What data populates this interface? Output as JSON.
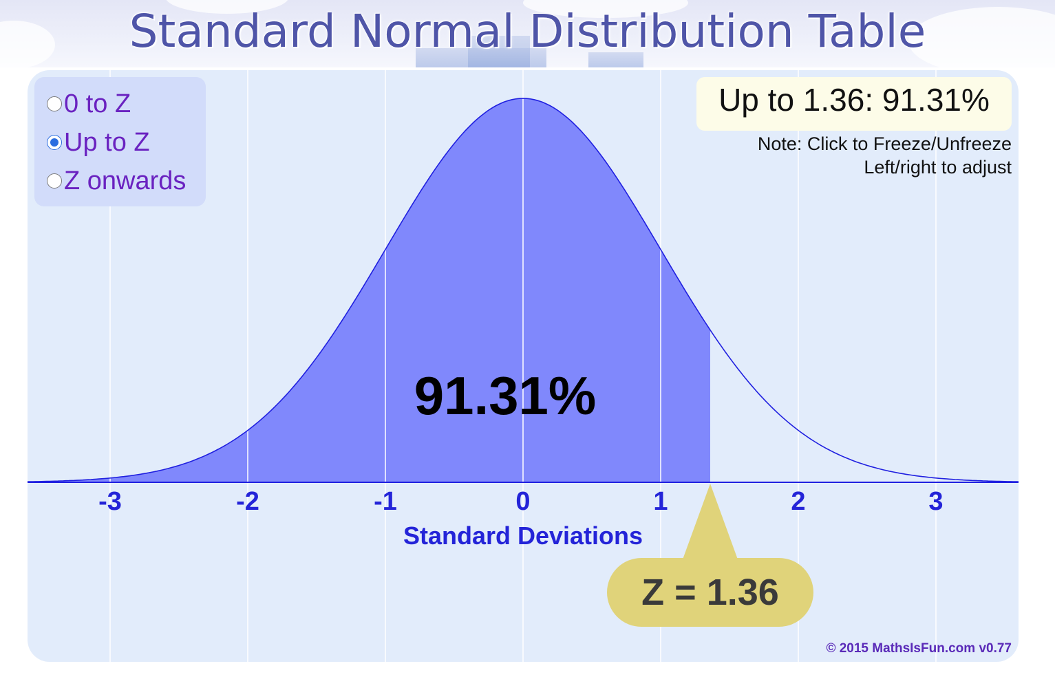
{
  "page": {
    "title": "Standard Normal Distribution Table"
  },
  "modes": [
    {
      "label": "0 to Z",
      "selected": false
    },
    {
      "label": "Up to Z",
      "selected": true
    },
    {
      "label": "Z onwards",
      "selected": false
    }
  ],
  "result": {
    "text": "Up to 1.36: 91.31%"
  },
  "notes": {
    "line1": "Note: Click to Freeze/Unfreeze",
    "line2": "Left/right to adjust"
  },
  "chart_data": {
    "type": "area",
    "curve": "standard-normal-pdf",
    "xlabel": "Standard Deviations",
    "xlim": [
      -3.6,
      3.6
    ],
    "x_ticks": [
      -3,
      -2,
      -1,
      0,
      1,
      2,
      3
    ],
    "x_tick_labels": [
      "-3",
      "-2",
      "-1",
      "0",
      "1",
      "2",
      "3"
    ],
    "shade_from": -3.6,
    "shade_to": 1.36,
    "z": 1.36,
    "area_label": "91.31%",
    "z_label": "Z = 1.36",
    "grid": true,
    "colors": {
      "curve": "#2020e0",
      "fill": "#8088fc",
      "grid": "#ffffff",
      "tick_label": "#2424d8",
      "area_label": "#000000",
      "z_callout": "#e0d37a",
      "z_text": "#3a3a3a"
    }
  },
  "footer": {
    "copyright": "© 2015 MathsIsFun.com v0.77"
  }
}
